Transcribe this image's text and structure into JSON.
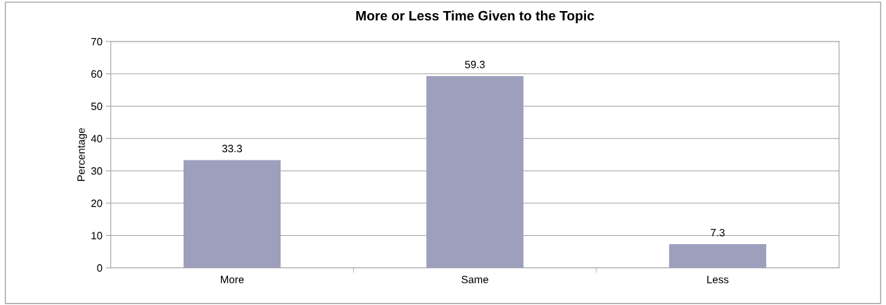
{
  "chart_data": {
    "type": "bar",
    "title": "More or Less Time Given to the Topic",
    "ylabel": "Percentage",
    "categories": [
      "More",
      "Same",
      "Less"
    ],
    "values": [
      33.3,
      59.3,
      7.3
    ],
    "color": "#9e9fbd",
    "ylim": [
      0,
      70
    ],
    "yticks": [
      0,
      10,
      20,
      30,
      40,
      50,
      60,
      70
    ],
    "grid": "y",
    "data_labels": true
  }
}
